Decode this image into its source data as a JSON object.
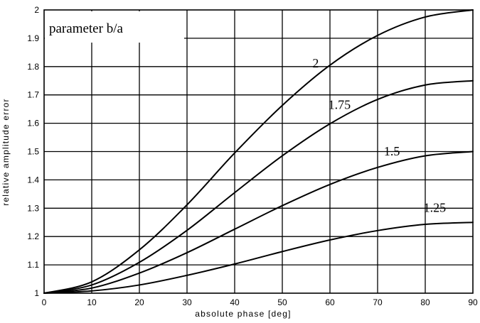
{
  "chart_data": {
    "type": "line",
    "title": "",
    "xlabel": "absolute phase   [deg]",
    "ylabel": "relative amplitude error",
    "xlim": [
      0,
      90
    ],
    "ylim": [
      1,
      2
    ],
    "x_ticks": [
      "0",
      "10",
      "20",
      "30",
      "40",
      "50",
      "60",
      "70",
      "80",
      "90"
    ],
    "y_ticks": [
      "1",
      "1.1",
      "1.2",
      "1.3",
      "1.4",
      "1.5",
      "1.6",
      "1.7",
      "1.8",
      "1.9",
      "2"
    ],
    "grid": true,
    "legend_title": "parameter b/a",
    "x": [
      0,
      10,
      20,
      30,
      40,
      50,
      60,
      70,
      80,
      90
    ],
    "series": [
      {
        "name": "1.25",
        "values": [
          1.0,
          1.008,
          1.029,
          1.063,
          1.103,
          1.147,
          1.188,
          1.221,
          1.243,
          1.25
        ]
      },
      {
        "name": "1.5",
        "values": [
          1.0,
          1.018,
          1.071,
          1.143,
          1.226,
          1.309,
          1.384,
          1.444,
          1.485,
          1.5
        ]
      },
      {
        "name": "1.75",
        "values": [
          1.0,
          1.029,
          1.109,
          1.222,
          1.355,
          1.485,
          1.598,
          1.684,
          1.735,
          1.75
        ]
      },
      {
        "name": "2",
        "values": [
          1.0,
          1.04,
          1.153,
          1.312,
          1.495,
          1.663,
          1.805,
          1.91,
          1.975,
          2.0
        ]
      }
    ]
  }
}
